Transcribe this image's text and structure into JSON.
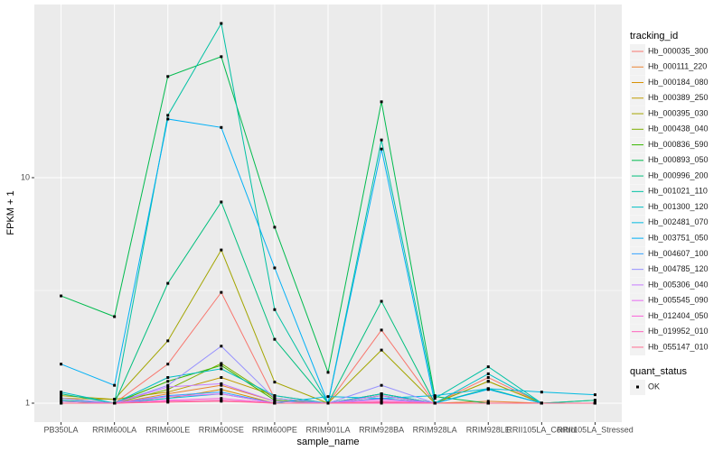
{
  "chart_data": {
    "type": "line",
    "x_label": "sample_name",
    "y_label": "FPKM + 1",
    "log_y": true,
    "grid": true,
    "legend_title": "tracking_id",
    "point_legend": {
      "title": "quant_status",
      "labels": [
        "OK"
      ],
      "color": "#000000"
    },
    "categories": [
      "PB350LA",
      "RRIM600LA",
      "RRIM600LE",
      "RRIM600SE",
      "RRIM600PE",
      "RRIM901LA",
      "RRIM928BA",
      "RRIM928LA",
      "RRIM928LE",
      "RRII105LA_Control",
      "RRII105LA_Stressed"
    ],
    "ylim": [
      0.824,
      58.6
    ],
    "yticks": [
      1,
      10
    ],
    "series": [
      {
        "name": "Hb_000035_300",
        "color": "#F8766D",
        "values": [
          1.05,
          1.0,
          1.49,
          3.1,
          1.05,
          1.0,
          2.11,
          1.0,
          1.3,
          1.0,
          1.0
        ]
      },
      {
        "name": "Hb_000111_220",
        "color": "#EA8331",
        "values": [
          1.02,
          1.0,
          1.1,
          1.2,
          1.02,
          1.0,
          1.08,
          1.0,
          1.02,
          1.0,
          1.0
        ]
      },
      {
        "name": "Hb_000184_080",
        "color": "#D89000",
        "values": [
          1.0,
          1.0,
          1.05,
          1.15,
          1.0,
          1.0,
          1.05,
          1.0,
          1.0,
          1.0,
          1.0
        ]
      },
      {
        "name": "Hb_000389_250",
        "color": "#C09B00",
        "values": [
          1.05,
          1.04,
          1.12,
          1.3,
          1.08,
          1.0,
          1.1,
          1.0,
          1.25,
          1.0,
          1.0
        ]
      },
      {
        "name": "Hb_000395_030",
        "color": "#A3A500",
        "values": [
          1.08,
          1.04,
          1.89,
          4.78,
          1.24,
          1.0,
          1.72,
          1.0,
          1.25,
          1.0,
          1.0
        ]
      },
      {
        "name": "Hb_000438_040",
        "color": "#7CAE00",
        "values": [
          1.0,
          1.0,
          1.15,
          1.5,
          1.05,
          1.0,
          1.08,
          1.0,
          1.0,
          1.0,
          1.03
        ]
      },
      {
        "name": "Hb_000836_590",
        "color": "#39B600",
        "values": [
          1.02,
          1.0,
          1.25,
          1.47,
          1.03,
          1.0,
          1.1,
          1.0,
          1.0,
          1.0,
          1.0
        ]
      },
      {
        "name": "Hb_000893_050",
        "color": "#00BB4E",
        "values": [
          2.99,
          2.42,
          28.1,
          34.4,
          6.03,
          1.37,
          21.7,
          1.07,
          1.0,
          1.0,
          1.0
        ]
      },
      {
        "name": "Hb_000996_200",
        "color": "#00BF7D",
        "values": [
          1.1,
          1.0,
          3.4,
          7.8,
          1.92,
          1.0,
          2.83,
          1.0,
          1.16,
          1.0,
          1.0
        ]
      },
      {
        "name": "Hb_001021_110",
        "color": "#00C1A3",
        "values": [
          1.03,
          1.0,
          18.9,
          48.3,
          2.6,
          1.0,
          14.7,
          1.05,
          1.45,
          1.0,
          1.03
        ]
      },
      {
        "name": "Hb_001300_120",
        "color": "#00BFC4",
        "values": [
          1.12,
          1.0,
          1.3,
          1.42,
          1.08,
          1.0,
          1.1,
          1.0,
          1.35,
          1.0,
          1.0
        ]
      },
      {
        "name": "Hb_002481_070",
        "color": "#00BAE0",
        "values": [
          1.0,
          1.0,
          1.05,
          1.1,
          1.0,
          1.07,
          1.05,
          1.08,
          1.16,
          1.12,
          1.09
        ]
      },
      {
        "name": "Hb_003751_050",
        "color": "#00B0F6",
        "values": [
          1.49,
          1.2,
          18.2,
          16.7,
          3.98,
          1.0,
          13.4,
          1.0,
          1.15,
          1.0,
          1.0
        ]
      },
      {
        "name": "Hb_004607_100",
        "color": "#35A2FF",
        "values": [
          1.0,
          1.0,
          1.08,
          1.12,
          1.0,
          1.0,
          1.05,
          1.0,
          1.0,
          1.0,
          1.0
        ]
      },
      {
        "name": "Hb_004785_120",
        "color": "#9590FF",
        "values": [
          1.05,
          1.0,
          1.2,
          1.79,
          1.05,
          1.0,
          1.2,
          1.0,
          1.0,
          1.0,
          1.0
        ]
      },
      {
        "name": "Hb_005306_040",
        "color": "#C77CFF",
        "values": [
          1.02,
          1.0,
          1.18,
          1.22,
          1.02,
          1.0,
          1.08,
          1.0,
          1.0,
          1.0,
          1.0
        ]
      },
      {
        "name": "Hb_005545_090",
        "color": "#E76BF3",
        "values": [
          1.0,
          1.0,
          1.07,
          1.1,
          1.0,
          1.0,
          1.04,
          1.0,
          1.0,
          1.0,
          1.0
        ]
      },
      {
        "name": "Hb_012404_050",
        "color": "#FA62DB",
        "values": [
          1.0,
          1.0,
          1.03,
          1.05,
          1.0,
          1.0,
          1.02,
          1.0,
          1.0,
          1.0,
          1.0
        ]
      },
      {
        "name": "Hb_019952_010",
        "color": "#FF62BC",
        "values": [
          1.0,
          1.0,
          1.02,
          1.03,
          1.0,
          1.0,
          1.0,
          1.0,
          1.0,
          1.0,
          1.0
        ]
      },
      {
        "name": "Hb_055147_010",
        "color": "#FF6C90",
        "values": [
          1.0,
          1.0,
          1.01,
          1.02,
          1.0,
          1.0,
          1.01,
          1.0,
          1.0,
          1.0,
          1.0
        ]
      }
    ]
  }
}
